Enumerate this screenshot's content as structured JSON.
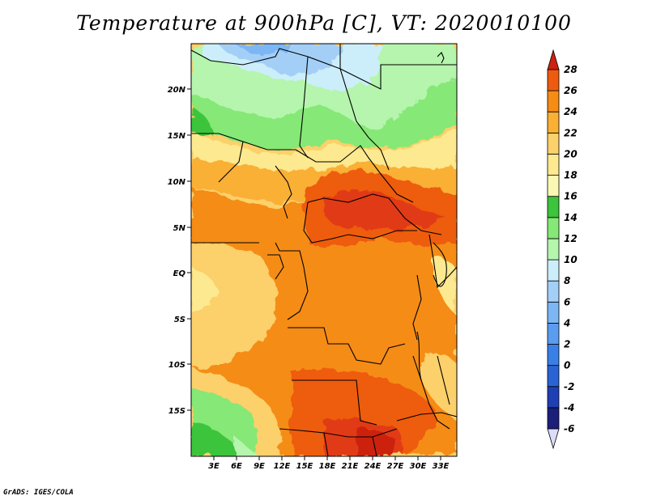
{
  "title": "Temperature at 900hPa [C], VT: 2020010100",
  "credit": "GrADS: IGES/COLA",
  "map": {
    "lon_labels": [
      "3E",
      "6E",
      "9E",
      "12E",
      "15E",
      "18E",
      "21E",
      "24E",
      "27E",
      "30E",
      "33E"
    ],
    "lat_labels": [
      "20N",
      "15N",
      "10N",
      "5N",
      "EQ",
      "5S",
      "10S",
      "15S"
    ]
  },
  "colorbar": {
    "levels": [
      "-6",
      "-4",
      "-2",
      "0",
      "2",
      "4",
      "6",
      "8",
      "10",
      "12",
      "14",
      "16",
      "18",
      "20",
      "22",
      "24",
      "26",
      "28"
    ],
    "colors": [
      "#1b1f7a",
      "#1f3fb4",
      "#2a63d4",
      "#3a7fe6",
      "#5b9cf0",
      "#7cb6f4",
      "#a3cff7",
      "#cceefa",
      "#b5f5ad",
      "#86e876",
      "#3cc43c",
      "#fbf8b3",
      "#fde98f",
      "#fcd06a",
      "#f9b035",
      "#f58c16",
      "#ee5b10",
      "#e03a12",
      "#cc2010"
    ]
  }
}
